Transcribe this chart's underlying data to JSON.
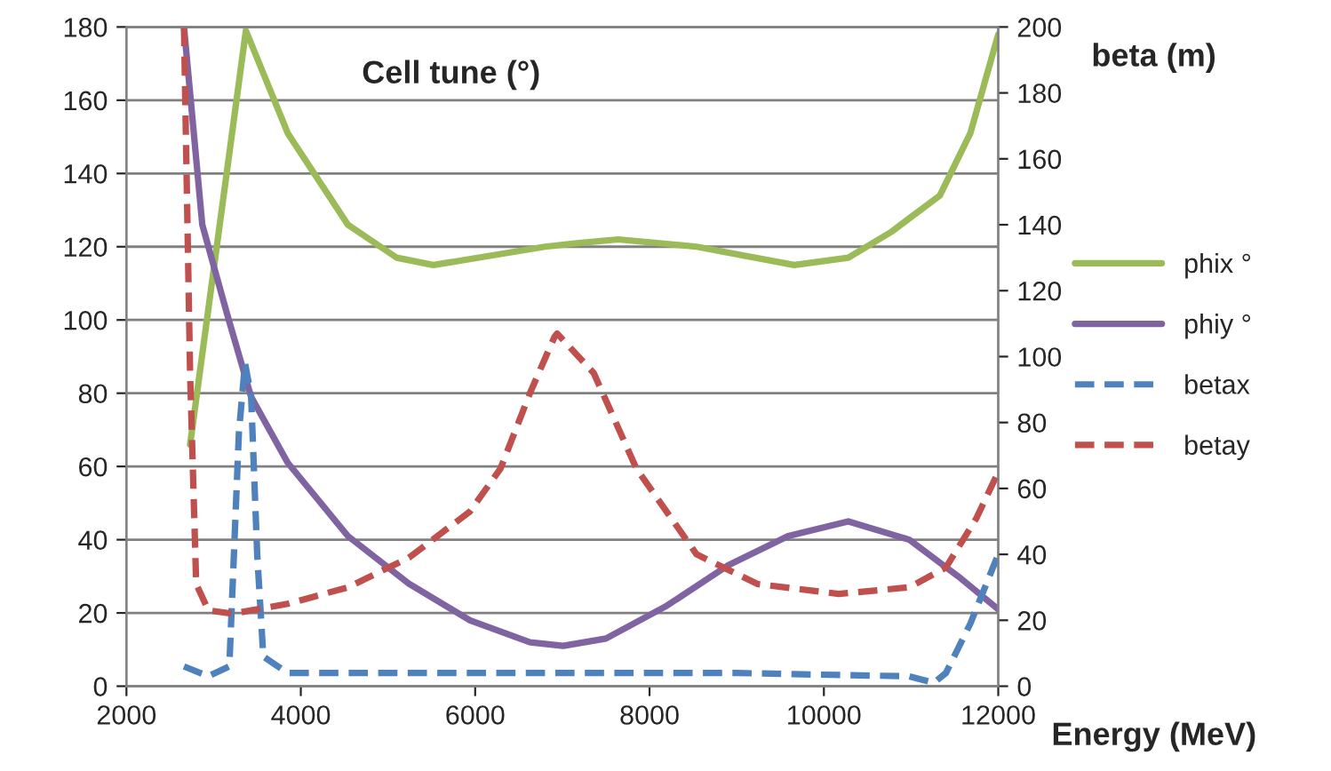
{
  "chart_data": {
    "type": "line",
    "ylabel": "Cell tune (°)",
    "y2label": "beta (m)",
    "xlabel": "Energy (MeV)",
    "xlim": [
      2000,
      12000
    ],
    "xticks": [
      2000,
      4000,
      6000,
      8000,
      10000,
      12000
    ],
    "ylim": [
      0,
      180
    ],
    "yticks": [
      0,
      20,
      40,
      60,
      80,
      100,
      120,
      140,
      160,
      180
    ],
    "y2lim": [
      0,
      200
    ],
    "y2ticks": [
      0,
      20,
      40,
      60,
      80,
      100,
      120,
      140,
      160,
      180,
      200
    ],
    "grid": "y",
    "legend": "right",
    "marker": "none",
    "series": [
      {
        "name": "phix °",
        "color": "#9bbb59",
        "line_style": "solid",
        "x": [
          2730,
          3370,
          3850,
          4540,
          5100,
          5520,
          6290,
          6800,
          7190,
          7640,
          8540,
          9660,
          10280,
          10770,
          11330,
          11680,
          12000
        ],
        "values": [
          66,
          179,
          151,
          126,
          117,
          115,
          118,
          120,
          121,
          122,
          120,
          115,
          117,
          124,
          134,
          151,
          178
        ]
      },
      {
        "name": "phiy °",
        "color": "#8064a2",
        "line_style": "solid",
        "x": [
          2660,
          2870,
          3150,
          3430,
          3850,
          4540,
          5240,
          5940,
          6630,
          7010,
          7500,
          8200,
          8900,
          9590,
          10280,
          10980,
          11540,
          12000
        ],
        "values": [
          180,
          126,
          102,
          79,
          61,
          41,
          28,
          18,
          12,
          11,
          13,
          22,
          33,
          41,
          45,
          40,
          30,
          21
        ]
      },
      {
        "name": "betax",
        "color": "#4f81bd",
        "line_style": "dashed",
        "axis": "y2",
        "x": [
          2660,
          2940,
          3180,
          3290,
          3360,
          3430,
          3500,
          3570,
          3850,
          5000,
          7000,
          9000,
          10980,
          11260,
          11400,
          11680,
          12000
        ],
        "values": [
          6,
          3,
          6,
          77,
          98,
          88,
          40,
          9,
          4,
          4,
          4,
          4,
          3,
          1,
          4,
          19,
          40
        ]
      },
      {
        "name": "betay",
        "color": "#c0504d",
        "line_style": "dashed",
        "axis": "y2",
        "x": [
          2660,
          2730,
          2800,
          2940,
          3220,
          3850,
          4540,
          5240,
          5940,
          6290,
          6630,
          6910,
          6940,
          7360,
          7850,
          8540,
          9240,
          10170,
          10980,
          11400,
          11750,
          12000
        ],
        "values": [
          200,
          95,
          31,
          23,
          22,
          25,
          30,
          39,
          53,
          66,
          89,
          106,
          107,
          95,
          66,
          40,
          31,
          28,
          30,
          36,
          51,
          65
        ]
      }
    ]
  }
}
